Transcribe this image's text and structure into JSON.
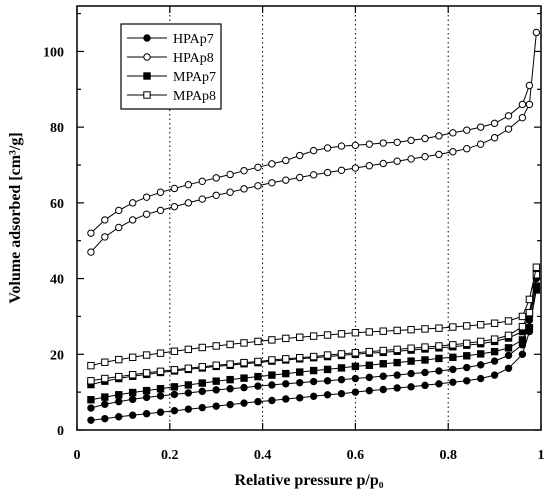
{
  "chart_data": {
    "type": "scatter",
    "title": "",
    "xlabel": "Relative pressure p/p₀",
    "ylabel": "Volume adsorbed [cm³/g]",
    "xlim": [
      0,
      1
    ],
    "ylim": [
      0,
      112
    ],
    "xticks": [
      {
        "value": 0,
        "label": "0"
      },
      {
        "value": 0.2,
        "label": "0.2"
      },
      {
        "value": 0.4,
        "label": "0.4"
      },
      {
        "value": 0.6,
        "label": "0.6"
      },
      {
        "value": 0.8,
        "label": "0.8"
      },
      {
        "value": 1,
        "label": "1"
      }
    ],
    "yticks": [
      {
        "value": 0,
        "label": "0"
      },
      {
        "value": 20,
        "label": "20"
      },
      {
        "value": 40,
        "label": "40"
      },
      {
        "value": 60,
        "label": "60"
      },
      {
        "value": 80,
        "label": "80"
      },
      {
        "value": 100,
        "label": "100"
      }
    ],
    "vertical_gridlines_at": [
      0.2,
      0.4,
      0.6,
      0.8
    ],
    "gridline_style": "dotted",
    "legend_position": "top-left",
    "series": [
      {
        "name": "HPAp7",
        "marker": "filled-circle",
        "color": "#000000",
        "adsorption": {
          "x": [
            0.03,
            0.06,
            0.09,
            0.12,
            0.15,
            0.18,
            0.21,
            0.24,
            0.27,
            0.3,
            0.33,
            0.36,
            0.39,
            0.42,
            0.45,
            0.48,
            0.51,
            0.54,
            0.57,
            0.6,
            0.63,
            0.66,
            0.69,
            0.72,
            0.75,
            0.78,
            0.81,
            0.84,
            0.87,
            0.9,
            0.93,
            0.96,
            0.975,
            0.99
          ],
          "y": [
            2.6,
            3.0,
            3.5,
            3.9,
            4.3,
            4.7,
            5.1,
            5.5,
            5.9,
            6.3,
            6.7,
            7.1,
            7.5,
            7.8,
            8.2,
            8.5,
            8.9,
            9.3,
            9.6,
            10.0,
            10.4,
            10.7,
            11.1,
            11.4,
            11.8,
            12.2,
            12.6,
            13.0,
            13.6,
            14.5,
            16.3,
            20.0,
            26.0,
            40.0
          ]
        },
        "desorption": {
          "x": [
            0.99,
            0.975,
            0.96,
            0.93,
            0.9,
            0.87,
            0.84,
            0.81,
            0.78,
            0.75,
            0.72,
            0.69,
            0.66,
            0.63,
            0.6,
            0.57,
            0.54,
            0.51,
            0.48,
            0.45,
            0.42,
            0.39,
            0.36,
            0.33,
            0.3,
            0.27,
            0.24,
            0.21,
            0.18,
            0.15,
            0.12,
            0.09,
            0.06,
            0.03
          ],
          "y": [
            42.0,
            29.0,
            22.5,
            19.7,
            18.2,
            17.2,
            16.5,
            16.0,
            15.6,
            15.2,
            14.9,
            14.5,
            14.2,
            13.9,
            13.6,
            13.3,
            13.0,
            12.8,
            12.5,
            12.2,
            11.9,
            11.6,
            11.2,
            10.9,
            10.6,
            10.2,
            9.8,
            9.4,
            9.0,
            8.6,
            8.1,
            7.5,
            6.8,
            5.8
          ]
        }
      },
      {
        "name": "HPAp8",
        "marker": "open-circle",
        "color": "#000000",
        "adsorption": {
          "x": [
            0.03,
            0.06,
            0.09,
            0.12,
            0.15,
            0.18,
            0.21,
            0.24,
            0.27,
            0.3,
            0.33,
            0.36,
            0.39,
            0.42,
            0.45,
            0.48,
            0.51,
            0.54,
            0.57,
            0.6,
            0.63,
            0.66,
            0.69,
            0.72,
            0.75,
            0.78,
            0.81,
            0.84,
            0.87,
            0.9,
            0.93,
            0.96,
            0.975,
            0.99
          ],
          "y": [
            47.0,
            51.0,
            53.5,
            55.5,
            57.0,
            58.0,
            59.0,
            60.0,
            61.0,
            62.0,
            62.8,
            63.7,
            64.5,
            65.3,
            66.0,
            66.7,
            67.4,
            68.0,
            68.6,
            69.2,
            69.8,
            70.4,
            71.0,
            71.6,
            72.2,
            72.8,
            73.5,
            74.3,
            75.5,
            77.2,
            79.5,
            82.5,
            86.0,
            105.0
          ]
        },
        "desorption": {
          "x": [
            0.975,
            0.96,
            0.93,
            0.9,
            0.87,
            0.84,
            0.81,
            0.78,
            0.75,
            0.72,
            0.69,
            0.66,
            0.63,
            0.6,
            0.57,
            0.54,
            0.51,
            0.48,
            0.45,
            0.42,
            0.39,
            0.36,
            0.33,
            0.3,
            0.27,
            0.24,
            0.21,
            0.18,
            0.15,
            0.12,
            0.09,
            0.06,
            0.03
          ],
          "y": [
            91.0,
            86.0,
            83.0,
            81.0,
            80.0,
            79.2,
            78.5,
            77.7,
            77.0,
            76.5,
            76.0,
            75.8,
            75.5,
            75.2,
            75.0,
            74.5,
            73.8,
            72.5,
            71.2,
            70.3,
            69.4,
            68.5,
            67.5,
            66.6,
            65.7,
            64.8,
            63.8,
            62.8,
            61.5,
            60.0,
            58.0,
            55.5,
            52.0
          ]
        }
      },
      {
        "name": "MPAp7",
        "marker": "filled-square",
        "color": "#000000",
        "adsorption": {
          "x": [
            0.03,
            0.06,
            0.09,
            0.12,
            0.15,
            0.18,
            0.21,
            0.24,
            0.27,
            0.3,
            0.33,
            0.36,
            0.39,
            0.42,
            0.45,
            0.48,
            0.51,
            0.54,
            0.57,
            0.6,
            0.63,
            0.66,
            0.69,
            0.72,
            0.75,
            0.78,
            0.81,
            0.84,
            0.87,
            0.9,
            0.93,
            0.96,
            0.975,
            0.99
          ],
          "y": [
            8.0,
            8.7,
            9.3,
            9.9,
            10.4,
            10.9,
            11.4,
            11.9,
            12.4,
            12.9,
            13.3,
            13.7,
            14.1,
            14.5,
            14.9,
            15.3,
            15.7,
            16.0,
            16.4,
            16.8,
            17.1,
            17.5,
            17.8,
            18.2,
            18.5,
            18.9,
            19.2,
            19.6,
            20.1,
            20.7,
            21.7,
            23.8,
            27.0,
            37.0
          ]
        },
        "desorption": {
          "x": [
            0.99,
            0.975,
            0.96,
            0.93,
            0.9,
            0.87,
            0.84,
            0.81,
            0.78,
            0.75,
            0.72,
            0.69,
            0.66,
            0.63,
            0.6,
            0.57,
            0.54,
            0.51,
            0.48,
            0.45,
            0.42,
            0.39,
            0.36,
            0.33,
            0.3,
            0.27,
            0.24,
            0.21,
            0.18,
            0.15,
            0.12,
            0.09,
            0.06,
            0.03
          ],
          "y": [
            38.0,
            30.5,
            26.0,
            24.3,
            23.4,
            22.8,
            22.4,
            22.0,
            21.7,
            21.4,
            21.1,
            20.8,
            20.5,
            20.3,
            20.0,
            19.7,
            19.4,
            19.1,
            18.8,
            18.5,
            18.2,
            17.8,
            17.5,
            17.1,
            16.8,
            16.4,
            16.0,
            15.6,
            15.2,
            14.7,
            14.2,
            13.6,
            12.9,
            12.0
          ]
        }
      },
      {
        "name": "MPAp8",
        "marker": "open-square",
        "color": "#000000",
        "adsorption": {
          "x": [
            0.03,
            0.06,
            0.09,
            0.12,
            0.15,
            0.18,
            0.21,
            0.24,
            0.27,
            0.3,
            0.33,
            0.36,
            0.39,
            0.42,
            0.45,
            0.48,
            0.51,
            0.54,
            0.57,
            0.6,
            0.63,
            0.66,
            0.69,
            0.72,
            0.75,
            0.78,
            0.81,
            0.84,
            0.87,
            0.9,
            0.93,
            0.96,
            0.975,
            0.99
          ],
          "y": [
            13.0,
            13.6,
            14.1,
            14.6,
            15.1,
            15.5,
            15.9,
            16.3,
            16.7,
            17.1,
            17.4,
            17.8,
            18.1,
            18.5,
            18.8,
            19.1,
            19.4,
            19.8,
            20.1,
            20.4,
            20.7,
            21.0,
            21.3,
            21.6,
            21.9,
            22.2,
            22.5,
            22.9,
            23.4,
            24.0,
            25.0,
            27.3,
            31.0,
            41.0
          ]
        },
        "desorption": {
          "x": [
            0.99,
            0.975,
            0.96,
            0.93,
            0.9,
            0.87,
            0.84,
            0.81,
            0.78,
            0.75,
            0.72,
            0.69,
            0.66,
            0.63,
            0.6,
            0.57,
            0.54,
            0.51,
            0.48,
            0.45,
            0.42,
            0.39,
            0.36,
            0.33,
            0.3,
            0.27,
            0.24,
            0.21,
            0.18,
            0.15,
            0.12,
            0.09,
            0.06,
            0.03
          ],
          "y": [
            43.0,
            34.5,
            30.0,
            28.8,
            28.2,
            27.8,
            27.5,
            27.2,
            26.9,
            26.7,
            26.5,
            26.3,
            26.1,
            25.9,
            25.7,
            25.4,
            25.1,
            24.8,
            24.5,
            24.2,
            23.8,
            23.4,
            23.0,
            22.6,
            22.2,
            21.8,
            21.3,
            20.8,
            20.3,
            19.8,
            19.2,
            18.6,
            17.9,
            17.0
          ]
        }
      }
    ]
  }
}
